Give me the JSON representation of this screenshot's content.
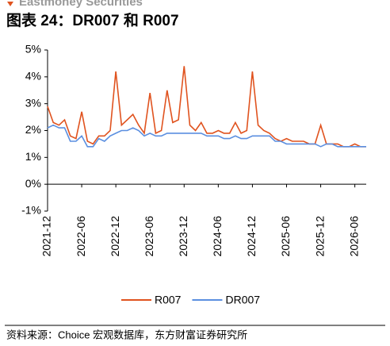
{
  "header": {
    "brand": "Eastmoney Securities"
  },
  "chart_data": {
    "type": "line",
    "title": "图表 24：DR007 和 R007",
    "x": [
      "2021-12",
      "2022-01",
      "2022-02",
      "2022-03",
      "2022-04",
      "2022-05",
      "2022-06",
      "2022-07",
      "2022-08",
      "2022-09",
      "2022-10",
      "2022-11",
      "2022-12",
      "2023-01",
      "2023-02",
      "2023-03",
      "2023-04",
      "2023-05",
      "2023-06",
      "2023-07",
      "2023-08",
      "2023-09",
      "2023-10",
      "2023-11",
      "2023-12",
      "2024-01",
      "2024-02",
      "2024-03",
      "2024-04",
      "2024-05",
      "2024-06",
      "2024-07",
      "2024-08",
      "2024-09",
      "2024-10",
      "2024-11",
      "2024-12",
      "2025-01",
      "2025-02",
      "2025-03",
      "2025-04",
      "2025-05",
      "2025-06",
      "2025-07",
      "2025-08",
      "2025-09",
      "2025-10",
      "2025-11",
      "2025-12",
      "2026-01",
      "2026-02",
      "2026-03",
      "2026-04",
      "2026-05",
      "2026-06",
      "2026-07",
      "2026-08"
    ],
    "series": [
      {
        "name": "R007",
        "color": "#e0531f",
        "values": [
          2.9,
          2.3,
          2.2,
          2.4,
          1.8,
          1.7,
          2.7,
          1.6,
          1.5,
          1.8,
          1.8,
          2.0,
          4.2,
          2.2,
          2.4,
          2.6,
          2.2,
          1.9,
          3.4,
          1.9,
          2.0,
          3.5,
          2.3,
          2.4,
          4.4,
          2.2,
          2.0,
          2.3,
          1.9,
          1.9,
          2.0,
          1.9,
          1.9,
          2.3,
          1.9,
          2.0,
          4.2,
          2.2,
          2.0,
          1.9,
          1.7,
          1.6,
          1.7,
          1.6,
          1.6,
          1.6,
          1.5,
          1.5,
          2.2,
          1.5,
          1.5,
          1.5,
          1.4,
          1.4,
          1.5,
          1.4,
          1.4
        ]
      },
      {
        "name": "DR007",
        "color": "#5b8fe0",
        "values": [
          2.1,
          2.2,
          2.1,
          2.1,
          1.6,
          1.6,
          1.8,
          1.4,
          1.4,
          1.7,
          1.6,
          1.8,
          1.9,
          2.0,
          2.0,
          2.1,
          2.0,
          1.8,
          1.9,
          1.8,
          1.8,
          1.9,
          1.9,
          1.9,
          1.9,
          1.9,
          1.9,
          1.9,
          1.8,
          1.8,
          1.8,
          1.7,
          1.7,
          1.8,
          1.7,
          1.7,
          1.8,
          1.8,
          1.8,
          1.8,
          1.6,
          1.6,
          1.5,
          1.5,
          1.5,
          1.5,
          1.5,
          1.5,
          1.4,
          1.5,
          1.5,
          1.4,
          1.4,
          1.4,
          1.4,
          1.4,
          1.4
        ]
      }
    ],
    "xlim": [
      "2021-12",
      "2026-08"
    ],
    "xticks": [
      "2021-12",
      "2022-06",
      "2022-12",
      "2023-06",
      "2023-12",
      "2024-06",
      "2024-12",
      "2025-06",
      "2025-12",
      "2026-06"
    ],
    "ylim": [
      -1,
      5
    ],
    "yticks": [
      {
        "value": -1,
        "label": "-1%"
      },
      {
        "value": 0,
        "label": "0%"
      },
      {
        "value": 1,
        "label": "1%"
      },
      {
        "value": 2,
        "label": "2%"
      },
      {
        "value": 3,
        "label": "3%"
      },
      {
        "value": 4,
        "label": "4%"
      },
      {
        "value": 5,
        "label": "5%"
      }
    ],
    "legend": "bottom",
    "source": "资料来源：Choice 宏观数据库，东方财富证券研究所"
  }
}
